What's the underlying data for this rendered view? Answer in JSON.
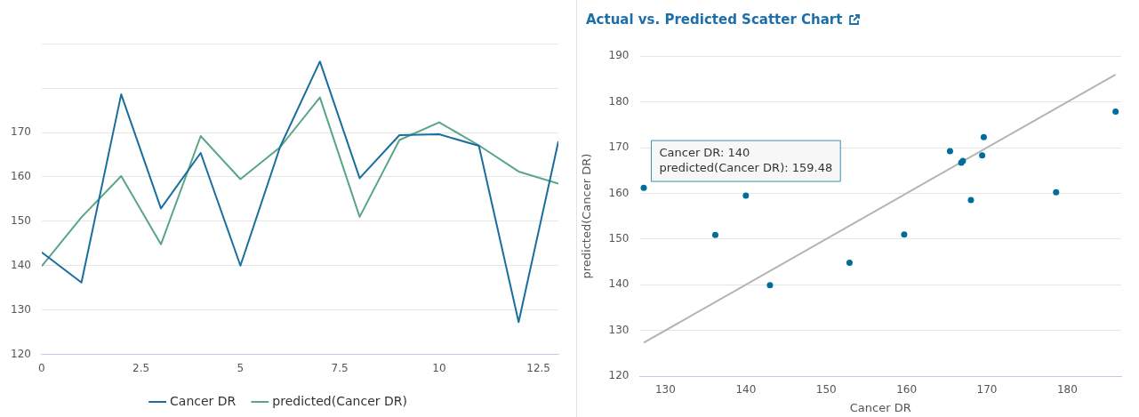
{
  "chart_data": [
    {
      "type": "line",
      "x": [
        0,
        1,
        2,
        3,
        4,
        5,
        6,
        7,
        8,
        9,
        10,
        11,
        12,
        13
      ],
      "xlim": [
        0,
        13
      ],
      "xticks": [
        0,
        2.5,
        5,
        7.5,
        10,
        12.5
      ],
      "ylim": [
        120,
        190
      ],
      "yticks": [
        120,
        130,
        140,
        150,
        160,
        170,
        {
          "value": 180,
          "label": null
        },
        {
          "value": 190,
          "label": null
        }
      ],
      "grid": "y",
      "legend": "bottom",
      "marker": "none",
      "series": [
        {
          "name": "Cancer DR",
          "color": "#1a6e9e",
          "values": [
            143,
            136.2,
            178.6,
            152.9,
            165.4,
            140,
            166.8,
            186,
            159.7,
            169.4,
            169.6,
            167,
            127.3,
            168
          ]
        },
        {
          "name": "predicted(Cancer DR)",
          "color": "#58a686",
          "values": [
            139.9,
            150.9,
            160.2,
            144.8,
            169.2,
            159.48,
            166.7,
            177.9,
            151,
            168.3,
            172.3,
            167.1,
            161.2,
            158.5
          ]
        }
      ]
    },
    {
      "type": "scatter",
      "title": "Actual vs. Predicted Scatter Chart",
      "xlabel": "Cancer DR",
      "ylabel": "predicted(Cancer DR)",
      "xlim": [
        126.8,
        186.7
      ],
      "xticks": [
        130,
        140,
        150,
        160,
        170,
        180
      ],
      "ylim": [
        120,
        190
      ],
      "yticks": [
        120,
        130,
        140,
        150,
        160,
        170,
        180,
        190
      ],
      "grid": "y",
      "marker": "circle",
      "annotations": [
        {
          "text": "Cancer DR: 140\npredicted(Cancer DR): 159.48",
          "x": 140,
          "y": 159.48
        }
      ],
      "series": [
        {
          "color": "#006d9c",
          "x": [
            143,
            136.2,
            178.6,
            152.9,
            165.4,
            140,
            166.8,
            186,
            159.7,
            169.4,
            169.6,
            167,
            127.3,
            168
          ],
          "values": [
            139.9,
            150.9,
            160.2,
            144.8,
            169.2,
            159.48,
            166.7,
            177.9,
            151,
            168.3,
            172.3,
            167.1,
            161.2,
            158.5
          ]
        },
        {
          "type": "line",
          "color": "#b4b4b4",
          "marker": "none",
          "x": [
            127.3,
            186
          ],
          "values": [
            127.3,
            186
          ]
        }
      ]
    }
  ]
}
